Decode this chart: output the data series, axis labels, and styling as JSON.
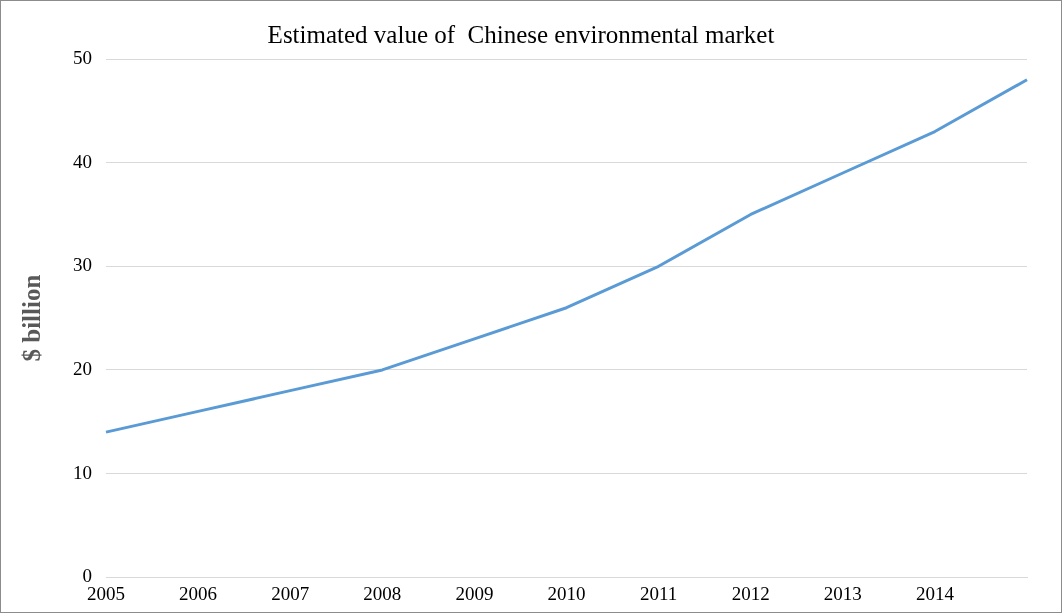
{
  "chart_data": {
    "type": "line",
    "title": "Estimated value of  Chinese environmental market",
    "ylabel": "$ billion",
    "categories": [
      "2005",
      "2006",
      "2007",
      "2008",
      "2009",
      "2010",
      "2011",
      "2012",
      "2013",
      "2014",
      null
    ],
    "values": [
      14,
      16,
      18,
      20,
      23,
      26,
      30,
      35,
      39,
      43,
      48
    ],
    "color": "#5b9bd5",
    "ylim": [
      0,
      50
    ],
    "yticks": [
      0,
      10,
      20,
      30,
      40,
      50
    ],
    "grid": "y",
    "marker": "none"
  }
}
